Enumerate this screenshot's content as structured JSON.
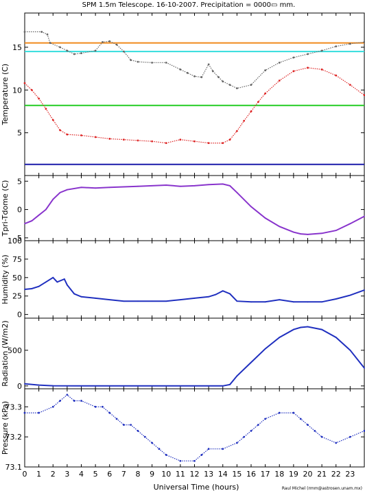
{
  "title": "SPM 1.5m Telescope. 16-10-2007. Precipitation = 0000▭ mm.",
  "xlabel": "Universal Time (hours)",
  "credit": "Raul Michel (rmm@astrosen.unam.mx)",
  "colors": {
    "axes": "#000000",
    "orange": "#f08a1c",
    "cyan": "#33dddd",
    "gray": "#666666",
    "red": "#dd2222",
    "green": "#22cc22",
    "darkblue": "#1a1aaa",
    "purple": "#8833cc",
    "blue": "#1f2fbf"
  },
  "chart_data": [
    {
      "type": "scatter",
      "ylabel": "Temperature (C)",
      "xlim": [
        0,
        24
      ],
      "ylim": [
        0,
        19
      ],
      "xticks": [
        0,
        1,
        2,
        3,
        4,
        5,
        6,
        7,
        8,
        9,
        10,
        11,
        12,
        13,
        14,
        15,
        16,
        17,
        18,
        19,
        20,
        21,
        22,
        23
      ],
      "yticks": [
        5,
        10,
        15
      ],
      "hlines": [
        {
          "y": 15.5,
          "color": "orange"
        },
        {
          "y": 14.5,
          "color": "cyan"
        },
        {
          "y": 8.2,
          "color": "green"
        },
        {
          "y": 1.3,
          "color": "darkblue"
        }
      ],
      "series": [
        {
          "color": "gray",
          "points": [
            [
              0,
              16.8
            ],
            [
              1.2,
              16.8
            ],
            [
              1.6,
              16.5
            ],
            [
              1.8,
              15.5
            ],
            [
              2.5,
              15.0
            ],
            [
              3.0,
              14.6
            ],
            [
              3.5,
              14.2
            ],
            [
              4.0,
              14.3
            ],
            [
              5.0,
              14.6
            ],
            [
              5.5,
              15.6
            ],
            [
              6.0,
              15.7
            ],
            [
              6.5,
              15.3
            ],
            [
              7.0,
              14.5
            ],
            [
              7.5,
              13.5
            ],
            [
              8.0,
              13.3
            ],
            [
              9.0,
              13.2
            ],
            [
              10.0,
              13.2
            ],
            [
              11.0,
              12.4
            ],
            [
              11.5,
              12.0
            ],
            [
              12.0,
              11.6
            ],
            [
              12.5,
              11.5
            ],
            [
              13.0,
              13.0
            ],
            [
              13.3,
              12.2
            ],
            [
              13.7,
              11.5
            ],
            [
              14.0,
              11.0
            ],
            [
              14.5,
              10.6
            ],
            [
              15.0,
              10.2
            ],
            [
              16.0,
              10.6
            ],
            [
              17.0,
              12.3
            ],
            [
              18.0,
              13.2
            ],
            [
              19.0,
              13.8
            ],
            [
              20.0,
              14.2
            ],
            [
              21.0,
              14.6
            ],
            [
              22.0,
              15.1
            ],
            [
              23.0,
              15.4
            ],
            [
              24.0,
              15.6
            ]
          ]
        },
        {
          "color": "red",
          "points": [
            [
              0,
              10.8
            ],
            [
              0.5,
              10.0
            ],
            [
              1.0,
              9.0
            ],
            [
              1.5,
              7.8
            ],
            [
              2.0,
              6.5
            ],
            [
              2.5,
              5.3
            ],
            [
              3.0,
              4.8
            ],
            [
              4.0,
              4.7
            ],
            [
              5.0,
              4.5
            ],
            [
              6.0,
              4.3
            ],
            [
              7.0,
              4.2
            ],
            [
              8.0,
              4.1
            ],
            [
              9.0,
              4.0
            ],
            [
              10.0,
              3.8
            ],
            [
              11.0,
              4.2
            ],
            [
              12.0,
              4.0
            ],
            [
              13.0,
              3.8
            ],
            [
              14.0,
              3.8
            ],
            [
              14.5,
              4.2
            ],
            [
              15.0,
              5.2
            ],
            [
              15.5,
              6.4
            ],
            [
              16.0,
              7.5
            ],
            [
              16.5,
              8.6
            ],
            [
              17.0,
              9.6
            ],
            [
              18.0,
              11.1
            ],
            [
              19.0,
              12.2
            ],
            [
              20.0,
              12.6
            ],
            [
              21.0,
              12.4
            ],
            [
              22.0,
              11.7
            ],
            [
              23.0,
              10.6
            ],
            [
              24.0,
              9.4
            ]
          ]
        }
      ]
    },
    {
      "type": "line",
      "ylabel": "Tpri-Tdome (C)",
      "xlim": [
        0,
        24
      ],
      "ylim": [
        -5.5,
        6
      ],
      "yticks": [
        -5,
        0,
        5
      ],
      "series": [
        {
          "color": "purple",
          "points": [
            [
              0,
              -2.5
            ],
            [
              0.5,
              -2.0
            ],
            [
              1.0,
              -1.0
            ],
            [
              1.5,
              0.0
            ],
            [
              2.0,
              1.8
            ],
            [
              2.5,
              3.0
            ],
            [
              3.0,
              3.5
            ],
            [
              4.0,
              3.9
            ],
            [
              5.0,
              3.8
            ],
            [
              6.0,
              3.9
            ],
            [
              7.0,
              4.0
            ],
            [
              8.0,
              4.1
            ],
            [
              9.0,
              4.2
            ],
            [
              10.0,
              4.3
            ],
            [
              11.0,
              4.1
            ],
            [
              12.0,
              4.2
            ],
            [
              13.0,
              4.4
            ],
            [
              14.0,
              4.5
            ],
            [
              14.5,
              4.2
            ],
            [
              15.0,
              3.0
            ],
            [
              16.0,
              0.5
            ],
            [
              17.0,
              -1.5
            ],
            [
              18.0,
              -3.0
            ],
            [
              19.0,
              -4.0
            ],
            [
              19.5,
              -4.3
            ],
            [
              20.0,
              -4.4
            ],
            [
              21.0,
              -4.2
            ],
            [
              22.0,
              -3.7
            ],
            [
              23.0,
              -2.5
            ],
            [
              24.0,
              -1.2
            ]
          ]
        }
      ]
    },
    {
      "type": "line",
      "ylabel": "Humidity (%)",
      "xlim": [
        0,
        24
      ],
      "ylim": [
        -5,
        100
      ],
      "yticks": [
        0,
        25,
        50,
        75,
        100
      ],
      "series": [
        {
          "color": "blue",
          "points": [
            [
              0,
              34
            ],
            [
              0.5,
              35
            ],
            [
              1.0,
              38
            ],
            [
              1.5,
              44
            ],
            [
              2.0,
              50
            ],
            [
              2.3,
              44
            ],
            [
              2.8,
              48
            ],
            [
              3.0,
              40
            ],
            [
              3.5,
              28
            ],
            [
              4.0,
              24
            ],
            [
              5.0,
              22
            ],
            [
              6.0,
              20
            ],
            [
              7.0,
              18
            ],
            [
              8.0,
              18
            ],
            [
              9.0,
              18
            ],
            [
              10.0,
              18
            ],
            [
              11.0,
              20
            ],
            [
              12.0,
              22
            ],
            [
              13.0,
              24
            ],
            [
              13.5,
              27
            ],
            [
              14.0,
              32
            ],
            [
              14.5,
              28
            ],
            [
              15.0,
              18
            ],
            [
              16.0,
              17
            ],
            [
              17.0,
              17
            ],
            [
              18.0,
              20
            ],
            [
              19.0,
              17
            ],
            [
              20.0,
              17
            ],
            [
              21.0,
              17
            ],
            [
              22.0,
              21
            ],
            [
              23.0,
              26
            ],
            [
              24.0,
              33
            ]
          ]
        }
      ]
    },
    {
      "type": "line",
      "ylabel": "Radiation (W/m2)",
      "xlim": [
        0,
        24
      ],
      "ylim": [
        -40,
        950
      ],
      "yticks": [
        0,
        500
      ],
      "series": [
        {
          "color": "blue",
          "points": [
            [
              0,
              30
            ],
            [
              1.0,
              12
            ],
            [
              2.0,
              2
            ],
            [
              4.0,
              0
            ],
            [
              8.0,
              0
            ],
            [
              12.0,
              0
            ],
            [
              14.0,
              0
            ],
            [
              14.5,
              20
            ],
            [
              15.0,
              140
            ],
            [
              16.0,
              330
            ],
            [
              17.0,
              520
            ],
            [
              18.0,
              680
            ],
            [
              19.0,
              790
            ],
            [
              19.5,
              820
            ],
            [
              20.0,
              830
            ],
            [
              21.0,
              790
            ],
            [
              22.0,
              680
            ],
            [
              23.0,
              500
            ],
            [
              24.0,
              250
            ]
          ]
        }
      ]
    },
    {
      "type": "scatter",
      "ylabel": "Pressure (kPa)",
      "xlim": [
        0,
        24
      ],
      "ylim": [
        73.1,
        73.36
      ],
      "yticks": [
        73.1,
        73.2,
        73.3
      ],
      "series": [
        {
          "color": "blue",
          "points": [
            [
              0,
              73.28
            ],
            [
              1.0,
              73.28
            ],
            [
              2.0,
              73.3
            ],
            [
              2.5,
              73.32
            ],
            [
              3.0,
              73.34
            ],
            [
              3.5,
              73.32
            ],
            [
              4.0,
              73.32
            ],
            [
              5.0,
              73.3
            ],
            [
              5.5,
              73.3
            ],
            [
              6.0,
              73.28
            ],
            [
              6.5,
              73.26
            ],
            [
              7.0,
              73.24
            ],
            [
              7.5,
              73.24
            ],
            [
              8.0,
              73.22
            ],
            [
              8.5,
              73.2
            ],
            [
              9.0,
              73.18
            ],
            [
              9.5,
              73.16
            ],
            [
              10.0,
              73.14
            ],
            [
              11.0,
              73.12
            ],
            [
              12.0,
              73.12
            ],
            [
              12.5,
              73.14
            ],
            [
              13.0,
              73.16
            ],
            [
              14.0,
              73.16
            ],
            [
              15.0,
              73.18
            ],
            [
              15.5,
              73.2
            ],
            [
              16.0,
              73.22
            ],
            [
              16.5,
              73.24
            ],
            [
              17.0,
              73.26
            ],
            [
              18.0,
              73.28
            ],
            [
              19.0,
              73.28
            ],
            [
              19.5,
              73.26
            ],
            [
              20.0,
              73.24
            ],
            [
              20.5,
              73.22
            ],
            [
              21.0,
              73.2
            ],
            [
              22.0,
              73.18
            ],
            [
              23.0,
              73.2
            ],
            [
              24.0,
              73.22
            ]
          ]
        }
      ]
    }
  ]
}
